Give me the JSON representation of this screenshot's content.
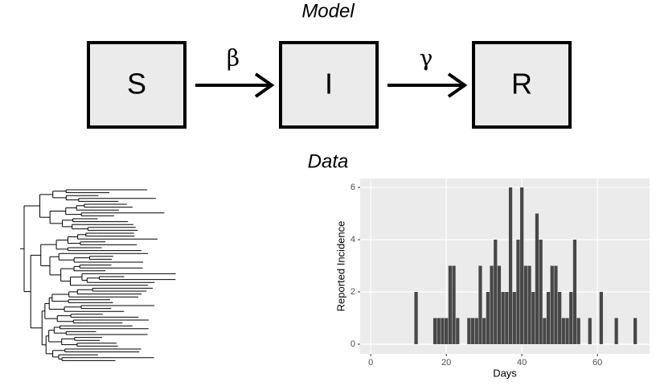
{
  "model": {
    "title": "Model",
    "nodes": [
      {
        "label": "S"
      },
      {
        "label": "I"
      },
      {
        "label": "R"
      }
    ],
    "edges": [
      {
        "label": "β"
      },
      {
        "label": "γ"
      }
    ]
  },
  "data_title": "Data",
  "chart_data": {
    "type": "bar",
    "xlabel": "Days",
    "ylabel": "Reported Incidence",
    "x": [
      12,
      17,
      18,
      19,
      20,
      21,
      22,
      23,
      26,
      27,
      28,
      29,
      30,
      31,
      32,
      33,
      34,
      35,
      36,
      37,
      38,
      39,
      40,
      41,
      42,
      43,
      44,
      45,
      46,
      47,
      48,
      49,
      50,
      51,
      52,
      53,
      54,
      55,
      58,
      61,
      65,
      70
    ],
    "values": [
      2,
      1,
      1,
      1,
      1,
      3,
      3,
      1,
      1,
      1,
      1,
      3,
      1,
      2,
      3,
      4,
      3,
      2,
      2,
      6,
      2,
      4,
      6,
      3,
      3,
      2,
      5,
      4,
      1,
      2,
      3,
      3,
      2,
      1,
      1,
      2,
      4,
      1,
      1,
      2,
      1,
      1
    ],
    "color": "#474747",
    "xlim": [
      -2.8,
      73.8
    ],
    "xticks": [
      0,
      20,
      40,
      60
    ],
    "ylim": [
      -0.37,
      6.34
    ],
    "yticks": [
      0,
      2,
      4,
      6
    ],
    "grid": true
  }
}
